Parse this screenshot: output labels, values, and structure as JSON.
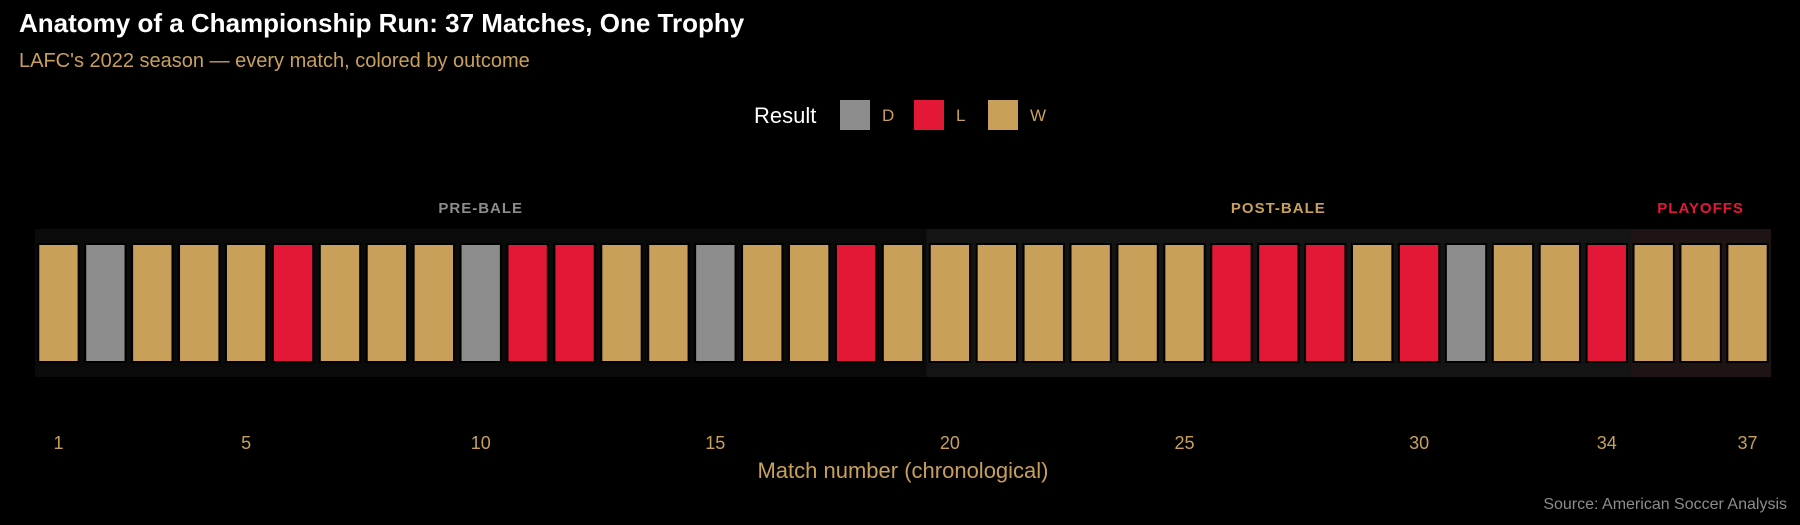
{
  "chart_data": {
    "type": "bar",
    "title": "Anatomy of a Championship Run: 37 Matches, One Trophy",
    "subtitle": "LAFC's 2022 season — every match, colored by outcome",
    "xlabel": "Match number (chronological)",
    "caption": "Source: American Soccer Analysis",
    "legend": {
      "title": "Result",
      "placement": "top-center",
      "entries": [
        {
          "key": "D",
          "label": "D",
          "color": "#8c8c8c"
        },
        {
          "key": "L",
          "label": "L",
          "color": "#e31837"
        },
        {
          "key": "W",
          "label": "W",
          "color": "#c8a05a"
        }
      ]
    },
    "x_ticks": [
      1,
      5,
      10,
      15,
      20,
      25,
      30,
      34,
      37
    ],
    "xlim": [
      0.5,
      37.5
    ],
    "eras": [
      {
        "label": "PRE-BALE",
        "start": 1,
        "end": 19,
        "label_color": "#8c8c8c",
        "band_color": "#0a0a0a"
      },
      {
        "label": "POST-BALE",
        "start": 20,
        "end": 34,
        "label_color": "#c8a05a",
        "band_color": "#141414"
      },
      {
        "label": "PLAYOFFS",
        "start": 35,
        "end": 37,
        "label_color": "#e31837",
        "band_color": "#1e1414"
      }
    ],
    "matches": [
      1,
      2,
      3,
      4,
      5,
      6,
      7,
      8,
      9,
      10,
      11,
      12,
      13,
      14,
      15,
      16,
      17,
      18,
      19,
      20,
      21,
      22,
      23,
      24,
      25,
      26,
      27,
      28,
      29,
      30,
      31,
      32,
      33,
      34,
      35,
      36,
      37
    ],
    "results": [
      "W",
      "D",
      "W",
      "W",
      "W",
      "L",
      "W",
      "W",
      "W",
      "D",
      "L",
      "L",
      "W",
      "W",
      "D",
      "W",
      "W",
      "L",
      "W",
      "W",
      "W",
      "W",
      "W",
      "W",
      "W",
      "L",
      "L",
      "L",
      "W",
      "L",
      "D",
      "W",
      "W",
      "L",
      "W",
      "W",
      "W"
    ],
    "grid": false
  }
}
